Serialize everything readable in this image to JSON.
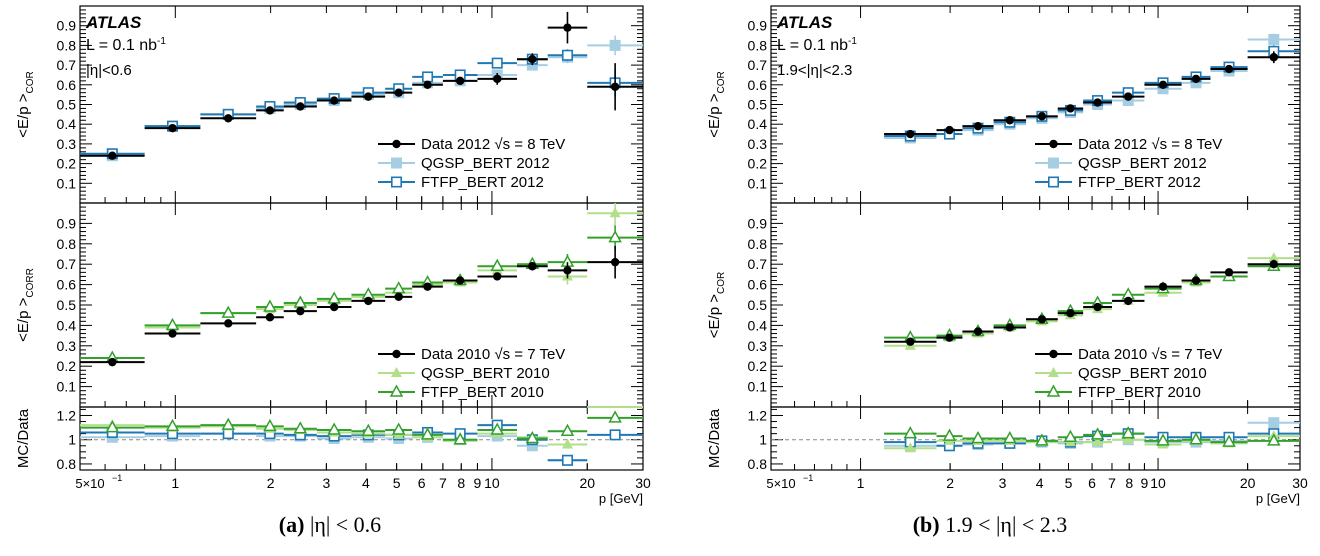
{
  "captions": [
    {
      "label": "(a)",
      "text": "|η| < 0.6"
    },
    {
      "label": "(b)",
      "text": "1.9 < |η| < 2.3"
    }
  ],
  "colors": {
    "data": "#000000",
    "qgsp_2012": "#a6cee3",
    "ftfp_2012": "#1f78b4",
    "qgsp_2010": "#b2df8a",
    "ftfp_2010": "#33a02c"
  },
  "chart_data": [
    {
      "type": "scatter",
      "title": "",
      "atlas_label": "ATLAS",
      "lumi_text": "L = 0.1 nb",
      "lumi_sup": "-1",
      "eta_text": "|η|<0.6",
      "xlabel": "p [GeV]",
      "xscale": "log",
      "xlim": [
        0.5,
        30
      ],
      "xtick_labels": [
        "5×10",
        "1",
        "2",
        "3",
        "4",
        "5",
        "6",
        "7",
        "8",
        "9",
        "10",
        "20",
        "30"
      ],
      "xtick_exp": "−1",
      "bins": [
        [
          0.5,
          0.8
        ],
        [
          0.8,
          1.2
        ],
        [
          1.2,
          1.8
        ],
        [
          1.8,
          2.2
        ],
        [
          2.2,
          2.8
        ],
        [
          2.8,
          3.6
        ],
        [
          3.6,
          4.6
        ],
        [
          4.6,
          5.6
        ],
        [
          5.6,
          7
        ],
        [
          7,
          9
        ],
        [
          9,
          12
        ],
        [
          12,
          15
        ],
        [
          15,
          20
        ],
        [
          20,
          30
        ]
      ],
      "panels": [
        {
          "ylabel": "<E/p >",
          "ylabel_sub": "COR",
          "ylim": [
            0,
            1
          ],
          "yticks": [
            "0.1",
            "0.2",
            "0.3",
            "0.4",
            "0.5",
            "0.6",
            "0.7",
            "0.8",
            "0.9"
          ],
          "series": [
            {
              "name": "Data 2012 √s = 8 TeV",
              "marker": "dot",
              "values": [
                0.24,
                0.38,
                0.43,
                0.47,
                0.49,
                0.52,
                0.54,
                0.56,
                0.6,
                0.62,
                0.63,
                0.73,
                0.89,
                0.59
              ],
              "errors": [
                0.01,
                0.01,
                0.01,
                0.01,
                0.01,
                0.01,
                0.01,
                0.01,
                0.01,
                0.01,
                0.03,
                0.03,
                0.08,
                0.12
              ]
            },
            {
              "name": "QGSP_BERT 2012",
              "marker": "square",
              "values": [
                0.24,
                0.39,
                0.45,
                0.48,
                0.5,
                0.52,
                0.55,
                0.56,
                0.61,
                0.62,
                0.65,
                0.7,
                0.74,
                0.8
              ],
              "errors": [
                0.01,
                0.01,
                0.01,
                0.01,
                0.01,
                0.01,
                0.01,
                0.01,
                0.01,
                0.01,
                0.02,
                0.02,
                0.03,
                0.05
              ]
            },
            {
              "name": "FTFP_BERT 2012",
              "marker": "square-open",
              "values": [
                0.25,
                0.39,
                0.45,
                0.49,
                0.51,
                0.53,
                0.56,
                0.58,
                0.64,
                0.65,
                0.71,
                0.73,
                0.75,
                0.61
              ],
              "errors": [
                0.01,
                0.01,
                0.01,
                0.01,
                0.01,
                0.01,
                0.01,
                0.01,
                0.01,
                0.01,
                0.02,
                0.02,
                0.03,
                0.07
              ]
            }
          ]
        },
        {
          "ylabel": "<E/p >",
          "ylabel_sub": "CORR",
          "ylim": [
            0,
            1
          ],
          "yticks": [
            "0.1",
            "0.2",
            "0.3",
            "0.4",
            "0.5",
            "0.6",
            "0.7",
            "0.8",
            "0.9"
          ],
          "series": [
            {
              "name": "Data 2010 √s = 7 TeV",
              "marker": "dot",
              "values": [
                0.22,
                0.36,
                0.41,
                0.44,
                0.47,
                0.49,
                0.52,
                0.54,
                0.59,
                0.62,
                0.64,
                0.69,
                0.67,
                0.71
              ],
              "errors": [
                0.01,
                0.01,
                0.01,
                0.01,
                0.01,
                0.01,
                0.01,
                0.01,
                0.01,
                0.01,
                0.01,
                0.02,
                0.04,
                0.08
              ]
            },
            {
              "name": "QGSP_BERT 2010",
              "marker": "triangle",
              "values": [
                0.24,
                0.39,
                0.46,
                0.48,
                0.5,
                0.52,
                0.54,
                0.56,
                0.6,
                0.61,
                0.67,
                0.7,
                0.64,
                0.95
              ],
              "errors": [
                0.01,
                0.01,
                0.01,
                0.01,
                0.01,
                0.01,
                0.01,
                0.01,
                0.01,
                0.01,
                0.02,
                0.02,
                0.04,
                0.06
              ]
            },
            {
              "name": "FTFP_BERT 2010",
              "marker": "triangle-open",
              "values": [
                0.24,
                0.4,
                0.46,
                0.49,
                0.51,
                0.53,
                0.55,
                0.58,
                0.61,
                0.62,
                0.69,
                0.7,
                0.71,
                0.83
              ],
              "errors": [
                0.01,
                0.01,
                0.01,
                0.01,
                0.01,
                0.01,
                0.01,
                0.01,
                0.01,
                0.01,
                0.02,
                0.02,
                0.04,
                0.06
              ]
            }
          ]
        },
        {
          "ylabel": "MC/Data",
          "ylim": [
            0.75,
            1.27
          ],
          "yticks": [
            "0.8",
            "1",
            "1.2"
          ],
          "refline": 1,
          "series": [
            {
              "name": "QGSP_BERT 2012",
              "marker": "square",
              "values": [
                1.02,
                1.03,
                1.05,
                1.03,
                1.03,
                1.01,
                1.02,
                1.01,
                1.02,
                1.0,
                1.03,
                0.95,
                0.83,
                1.35
              ]
            },
            {
              "name": "FTFP_BERT 2012",
              "marker": "square-open",
              "values": [
                1.06,
                1.05,
                1.05,
                1.05,
                1.04,
                1.03,
                1.04,
                1.04,
                1.06,
                1.05,
                1.12,
                1.0,
                0.83,
                1.04
              ]
            },
            {
              "name": "QGSP_BERT 2010",
              "marker": "triangle",
              "values": [
                1.12,
                1.1,
                1.11,
                1.09,
                1.08,
                1.06,
                1.05,
                1.04,
                1.02,
                0.99,
                1.05,
                1.02,
                0.96,
                1.34
              ]
            },
            {
              "name": "FTFP_BERT 2010",
              "marker": "triangle-open",
              "values": [
                1.1,
                1.11,
                1.12,
                1.11,
                1.09,
                1.08,
                1.07,
                1.08,
                1.04,
                1.0,
                1.08,
                1.01,
                1.07,
                1.18
              ]
            }
          ]
        }
      ]
    },
    {
      "type": "scatter",
      "title": "",
      "atlas_label": "ATLAS",
      "lumi_text": "L = 0.1 nb",
      "lumi_sup": "-1",
      "eta_text": "1.9<|η|<2.3",
      "xlabel": "p [GeV]",
      "xscale": "log",
      "xlim": [
        0.5,
        30
      ],
      "xtick_labels": [
        "5×10",
        "1",
        "2",
        "3",
        "4",
        "5",
        "6",
        "7",
        "8",
        "9",
        "10",
        "20",
        "30"
      ],
      "xtick_exp": "−1",
      "bins": [
        [
          1.2,
          1.8
        ],
        [
          1.8,
          2.2
        ],
        [
          2.2,
          2.8
        ],
        [
          2.8,
          3.6
        ],
        [
          3.6,
          4.6
        ],
        [
          4.6,
          5.6
        ],
        [
          5.6,
          7
        ],
        [
          7,
          9
        ],
        [
          9,
          12
        ],
        [
          12,
          15
        ],
        [
          15,
          20
        ],
        [
          20,
          30
        ]
      ],
      "panels": [
        {
          "ylabel": "<E/p >",
          "ylabel_sub": "COR",
          "ylim": [
            0,
            1
          ],
          "yticks": [
            "0.1",
            "0.2",
            "0.3",
            "0.4",
            "0.5",
            "0.6",
            "0.7",
            "0.8",
            "0.9"
          ],
          "series": [
            {
              "name": "Data 2012 √s = 8 TeV",
              "marker": "dot",
              "values": [
                0.35,
                0.37,
                0.39,
                0.42,
                0.44,
                0.48,
                0.51,
                0.54,
                0.6,
                0.63,
                0.68,
                0.74
              ],
              "errors": [
                0.01,
                0.01,
                0.01,
                0.01,
                0.01,
                0.01,
                0.01,
                0.01,
                0.01,
                0.02,
                0.02,
                0.03
              ]
            },
            {
              "name": "QGSP_BERT 2012",
              "marker": "square",
              "values": [
                0.33,
                0.35,
                0.37,
                0.4,
                0.43,
                0.46,
                0.5,
                0.52,
                0.58,
                0.61,
                0.67,
                0.83
              ],
              "errors": [
                0.01,
                0.01,
                0.01,
                0.01,
                0.01,
                0.01,
                0.01,
                0.01,
                0.01,
                0.02,
                0.02,
                0.03
              ]
            },
            {
              "name": "FTFP_BERT 2012",
              "marker": "square-open",
              "values": [
                0.34,
                0.35,
                0.38,
                0.41,
                0.44,
                0.47,
                0.52,
                0.56,
                0.61,
                0.64,
                0.69,
                0.77
              ],
              "errors": [
                0.01,
                0.01,
                0.01,
                0.01,
                0.01,
                0.01,
                0.01,
                0.01,
                0.01,
                0.02,
                0.02,
                0.03
              ]
            }
          ]
        },
        {
          "ylabel": "<E/p >",
          "ylabel_sub": "COR",
          "ylim": [
            0,
            1
          ],
          "yticks": [
            "0.1",
            "0.2",
            "0.3",
            "0.4",
            "0.5",
            "0.6",
            "0.7",
            "0.8",
            "0.9"
          ],
          "series": [
            {
              "name": "Data 2010 √s = 7 TeV",
              "marker": "dot",
              "values": [
                0.32,
                0.34,
                0.37,
                0.39,
                0.43,
                0.46,
                0.49,
                0.52,
                0.59,
                0.62,
                0.66,
                0.7
              ],
              "errors": [
                0.01,
                0.01,
                0.01,
                0.01,
                0.01,
                0.01,
                0.01,
                0.01,
                0.01,
                0.01,
                0.01,
                0.02
              ]
            },
            {
              "name": "QGSP_BERT 2010",
              "marker": "triangle",
              "values": [
                0.3,
                0.34,
                0.36,
                0.39,
                0.42,
                0.45,
                0.48,
                0.52,
                0.56,
                0.61,
                0.64,
                0.73
              ],
              "errors": [
                0.01,
                0.01,
                0.01,
                0.01,
                0.01,
                0.01,
                0.01,
                0.01,
                0.01,
                0.01,
                0.01,
                0.02
              ]
            },
            {
              "name": "FTFP_BERT 2010",
              "marker": "triangle-open",
              "values": [
                0.34,
                0.35,
                0.37,
                0.4,
                0.43,
                0.47,
                0.51,
                0.55,
                0.58,
                0.62,
                0.64,
                0.69
              ],
              "errors": [
                0.01,
                0.01,
                0.01,
                0.01,
                0.01,
                0.01,
                0.01,
                0.01,
                0.01,
                0.01,
                0.01,
                0.02
              ]
            }
          ]
        },
        {
          "ylabel": "MC/Data",
          "ylim": [
            0.75,
            1.27
          ],
          "yticks": [
            "0.8",
            "1",
            "1.2"
          ],
          "refline": 1,
          "series": [
            {
              "name": "QGSP_BERT 2012",
              "marker": "square",
              "values": [
                0.95,
                0.95,
                0.96,
                0.97,
                0.98,
                0.97,
                0.98,
                1.0,
                0.98,
                0.98,
                0.99,
                1.14
              ]
            },
            {
              "name": "FTFP_BERT 2012",
              "marker": "square-open",
              "values": [
                0.98,
                0.95,
                0.97,
                0.97,
                0.99,
                0.98,
                1.03,
                1.05,
                1.02,
                1.02,
                1.02,
                1.05
              ]
            },
            {
              "name": "QGSP_BERT 2010",
              "marker": "triangle",
              "values": [
                0.93,
                0.99,
                0.99,
                0.99,
                0.98,
                0.98,
                0.98,
                1.0,
                0.96,
                0.99,
                0.97,
                1.03
              ]
            },
            {
              "name": "FTFP_BERT 2010",
              "marker": "triangle-open",
              "values": [
                1.05,
                1.03,
                1.01,
                1.01,
                0.99,
                1.02,
                1.04,
                1.05,
                0.99,
                1.0,
                0.98,
                0.99
              ]
            }
          ]
        }
      ]
    }
  ]
}
